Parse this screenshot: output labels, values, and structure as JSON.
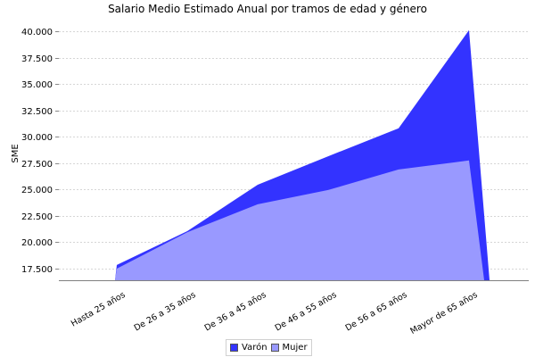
{
  "chart_data": {
    "type": "area",
    "title": "Salario Medio Estimado Anual por tramos de edad y género",
    "xlabel": "",
    "ylabel": "SME",
    "categories": [
      "Hasta 25  años",
      "De 26  a 35  años",
      "De 36  a 45  años",
      "De 46  a 55  años",
      "De 56  a 65  años",
      "Mayor de 65  años"
    ],
    "series": [
      {
        "name": "Varón",
        "color": "#3333ff",
        "values": [
          17850,
          21050,
          25450,
          28150,
          30800,
          40100
        ]
      },
      {
        "name": "Mujer",
        "color": "#9999ff",
        "values": [
          17500,
          20950,
          23600,
          24950,
          26900,
          27750
        ]
      }
    ],
    "yticks": [
      17500,
      20000,
      22500,
      25000,
      27500,
      30000,
      32500,
      35000,
      37500,
      40000
    ],
    "ytick_labels": [
      "17.500",
      "20.000",
      "22.500",
      "25.000",
      "27.500",
      "30.000",
      "32.500",
      "35.000",
      "37.500",
      "40.000"
    ],
    "ylim": [
      16400,
      41000
    ],
    "grid": true,
    "legend_position": "bottom"
  },
  "legend": {
    "items": [
      {
        "label": "Varón",
        "color": "#3333ff"
      },
      {
        "label": "Mujer",
        "color": "#9999ff"
      }
    ]
  }
}
